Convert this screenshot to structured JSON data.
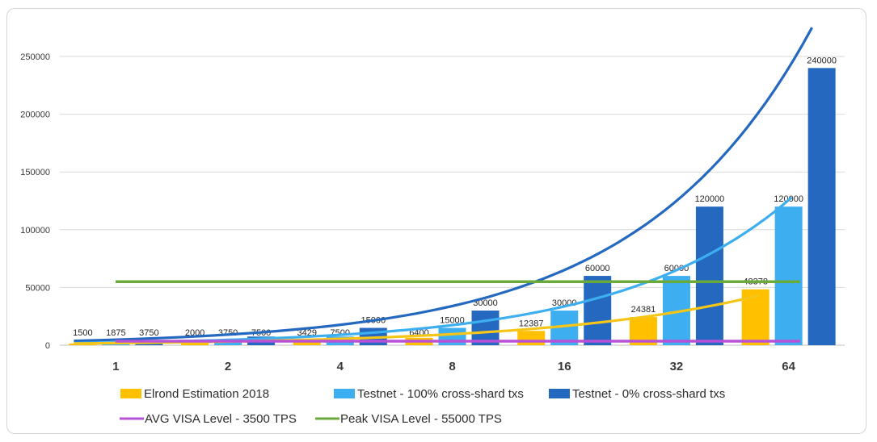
{
  "chart_data": {
    "type": "bar",
    "categories": [
      "1",
      "2",
      "4",
      "8",
      "16",
      "32",
      "64"
    ],
    "ylim": [
      0,
      275000
    ],
    "yticks": [
      0,
      50000,
      100000,
      150000,
      200000,
      250000
    ],
    "series": [
      {
        "name": "Elrond Estimation 2018",
        "color": "#FFC000",
        "values": [
          1500,
          2000,
          3429,
          6400,
          12387,
          24381,
          48378
        ]
      },
      {
        "name": "Testnet - 100% cross-shard txs",
        "color": "#3DAEEF",
        "values": [
          1875,
          3750,
          7500,
          15000,
          30000,
          60000,
          120000
        ]
      },
      {
        "name": "Testnet - 0% cross-shard txs",
        "color": "#2468C0",
        "values": [
          3750,
          7500,
          15000,
          30000,
          60000,
          120000,
          240000
        ]
      }
    ],
    "reference_lines": [
      {
        "name": "AVG VISA Level - 3500 TPS",
        "color": "#B850D8",
        "value": 3500
      },
      {
        "name": "Peak VISA Level - 55000 TPS",
        "color": "#6AAA3A",
        "value": 55000
      }
    ],
    "trendlines": [
      {
        "series": "Testnet - 0% cross-shard txs",
        "color": "#2468C0",
        "type": "exponential",
        "end_value": 275000
      },
      {
        "series": "Testnet - 100% cross-shard txs",
        "color": "#3DAEEF",
        "type": "exponential",
        "end_value": 128000
      },
      {
        "series": "Elrond Estimation 2018",
        "color": "#F5C518",
        "type": "exponential",
        "end_value": 43000
      }
    ],
    "grid": true,
    "legend_position": "bottom"
  }
}
